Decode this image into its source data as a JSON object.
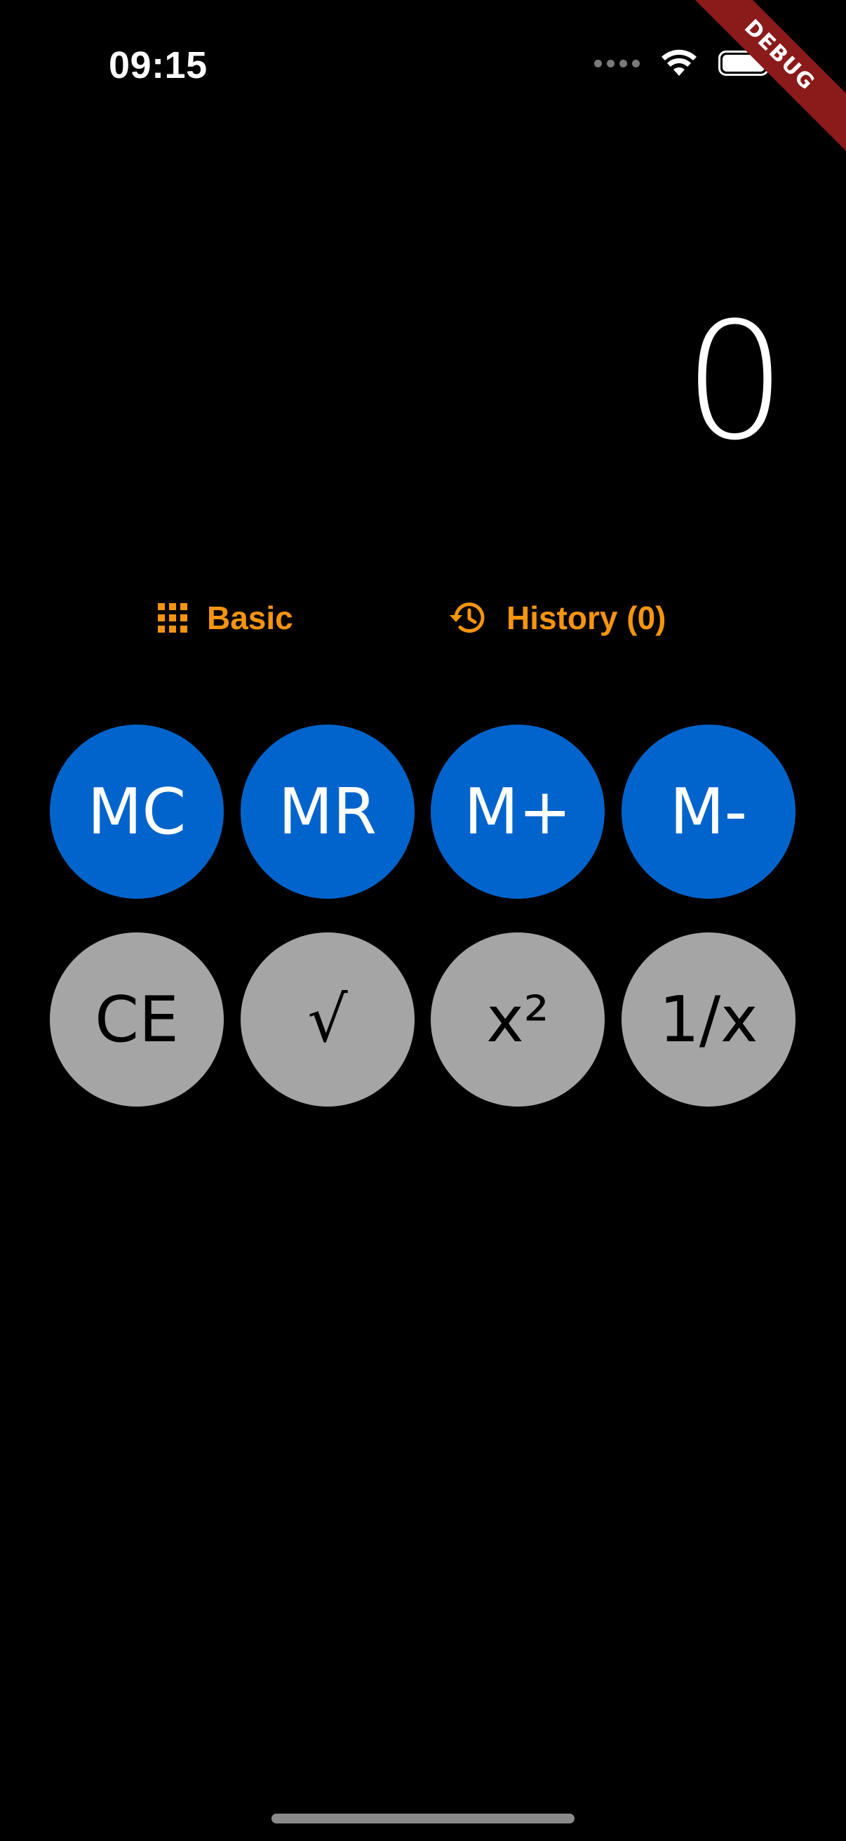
{
  "status_bar": {
    "time": "09:15",
    "icons": [
      "signal-dots-icon",
      "wifi-icon",
      "battery-icon"
    ]
  },
  "debug_banner": "DEBUG",
  "display": {
    "value": "0"
  },
  "modes": {
    "basic": {
      "label": "Basic",
      "icon": "grid-icon"
    },
    "history": {
      "label": "History (0)",
      "icon": "history-icon"
    }
  },
  "memory_keys": [
    {
      "label": "MC"
    },
    {
      "label": "MR"
    },
    {
      "label": "M+"
    },
    {
      "label": "M-"
    }
  ],
  "function_keys": [
    {
      "label": "CE"
    },
    {
      "label": "√"
    },
    {
      "label": "x²"
    },
    {
      "label": "1/x"
    }
  ],
  "colors": {
    "background": "#000000",
    "accent": "#f5950f",
    "memory_key": "#0064cc",
    "function_key": "#a5a5a5",
    "debug_ribbon": "#8b1a1a"
  }
}
